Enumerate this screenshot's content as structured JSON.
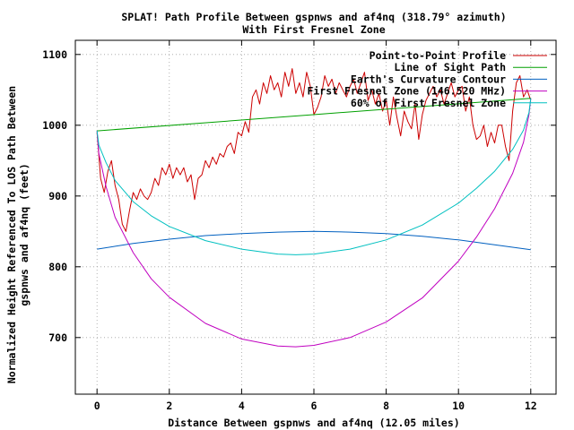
{
  "chart_data": {
    "type": "line",
    "title": "SPLAT! Path Profile Between gspnws and af4nq (318.79° azimuth)",
    "subtitle": "With First Fresnel Zone",
    "xlabel": "Distance Between gspnws and af4nq (12.05 miles)",
    "ylabel_line1": "Normalized Height Referenced To LOS Path Between",
    "ylabel_line2": "gspnws and af4nq (feet)",
    "xlim": [
      -0.6,
      12.7
    ],
    "ylim": [
      620,
      1120
    ],
    "x_ticks": [
      0,
      2,
      4,
      6,
      8,
      10,
      12
    ],
    "y_ticks": [
      700,
      800,
      900,
      1000,
      1100
    ],
    "grid": true,
    "legend_position": "top-right",
    "series": [
      {
        "name": "Point-to-Point Profile",
        "color": "#cc0000",
        "x": [
          0,
          0.1,
          0.2,
          0.3,
          0.4,
          0.5,
          0.6,
          0.7,
          0.8,
          0.9,
          1.0,
          1.1,
          1.2,
          1.3,
          1.4,
          1.5,
          1.6,
          1.7,
          1.8,
          1.9,
          2.0,
          2.1,
          2.2,
          2.3,
          2.4,
          2.5,
          2.6,
          2.7,
          2.8,
          2.9,
          3.0,
          3.1,
          3.2,
          3.3,
          3.4,
          3.5,
          3.6,
          3.7,
          3.8,
          3.9,
          4.0,
          4.1,
          4.2,
          4.3,
          4.4,
          4.5,
          4.6,
          4.7,
          4.8,
          4.9,
          5.0,
          5.1,
          5.2,
          5.3,
          5.4,
          5.5,
          5.6,
          5.7,
          5.8,
          5.9,
          6.0,
          6.1,
          6.2,
          6.3,
          6.4,
          6.5,
          6.6,
          6.7,
          6.8,
          6.9,
          7.0,
          7.1,
          7.2,
          7.3,
          7.4,
          7.5,
          7.6,
          7.7,
          7.8,
          7.9,
          8.0,
          8.1,
          8.2,
          8.3,
          8.4,
          8.5,
          8.6,
          8.7,
          8.8,
          8.9,
          9.0,
          9.1,
          9.2,
          9.3,
          9.4,
          9.5,
          9.6,
          9.7,
          9.8,
          9.9,
          10.0,
          10.1,
          10.2,
          10.3,
          10.4,
          10.5,
          10.6,
          10.7,
          10.8,
          10.9,
          11.0,
          11.1,
          11.2,
          11.3,
          11.4,
          11.5,
          11.6,
          11.7,
          11.8,
          11.9,
          12.0
        ],
        "values": [
          990,
          925,
          905,
          935,
          950,
          915,
          895,
          860,
          850,
          880,
          905,
          895,
          910,
          900,
          895,
          905,
          925,
          915,
          940,
          930,
          945,
          925,
          940,
          930,
          940,
          920,
          930,
          895,
          925,
          930,
          950,
          940,
          955,
          945,
          960,
          955,
          970,
          975,
          960,
          990,
          985,
          1005,
          990,
          1040,
          1050,
          1030,
          1060,
          1045,
          1070,
          1050,
          1060,
          1040,
          1075,
          1055,
          1080,
          1045,
          1060,
          1040,
          1075,
          1055,
          1015,
          1025,
          1040,
          1070,
          1055,
          1065,
          1045,
          1060,
          1050,
          1040,
          1055,
          1065,
          1045,
          1060,
          1075,
          1035,
          1050,
          1030,
          1045,
          1020,
          1035,
          1000,
          1040,
          1010,
          985,
          1020,
          1005,
          995,
          1030,
          980,
          1015,
          1035,
          1045,
          1055,
          1040,
          1050,
          1030,
          1045,
          1060,
          1040,
          1050,
          1055,
          1020,
          1040,
          1000,
          980,
          985,
          1000,
          970,
          990,
          975,
          1000,
          1000,
          970,
          950,
          1020,
          1060,
          1070,
          1040,
          1050,
          1035
        ]
      },
      {
        "name": "Line of Sight Path",
        "color": "#00a000",
        "x": [
          0,
          12
        ],
        "values": [
          992,
          1038
        ]
      },
      {
        "name": "Earth's Curvature Contour",
        "color": "#0060c0",
        "x": [
          0,
          1,
          2,
          3,
          4,
          5,
          6,
          7,
          8,
          9,
          10,
          11,
          12
        ],
        "values": [
          825,
          833,
          839,
          844,
          847,
          849,
          850,
          849,
          847,
          843,
          838,
          831,
          824
        ]
      },
      {
        "name": "First Fresnel Zone (146.520 MHz)",
        "color": "#c000c0",
        "x": [
          0,
          0.05,
          0.25,
          0.5,
          1,
          1.5,
          2,
          3,
          4,
          5,
          5.5,
          6,
          7,
          8,
          9,
          10,
          10.5,
          11,
          11.5,
          11.8,
          11.95,
          12
        ],
        "values": [
          992,
          960,
          913,
          870,
          820,
          783,
          757,
          720,
          698,
          688,
          687,
          689,
          700,
          722,
          756,
          808,
          842,
          882,
          932,
          976,
          1015,
          1038
        ]
      },
      {
        "name": "60% of First Fresnel Zone",
        "color": "#00c0c0",
        "x": [
          0,
          0.05,
          0.25,
          0.5,
          1,
          1.5,
          2,
          3,
          4,
          5,
          5.5,
          6,
          7,
          8,
          9,
          10,
          10.5,
          11,
          11.5,
          11.8,
          11.95,
          12
        ],
        "values": [
          992,
          972,
          947,
          922,
          892,
          872,
          857,
          837,
          825,
          818,
          817,
          818,
          825,
          838,
          859,
          890,
          911,
          935,
          966,
          993,
          1018,
          1038
        ]
      }
    ]
  }
}
